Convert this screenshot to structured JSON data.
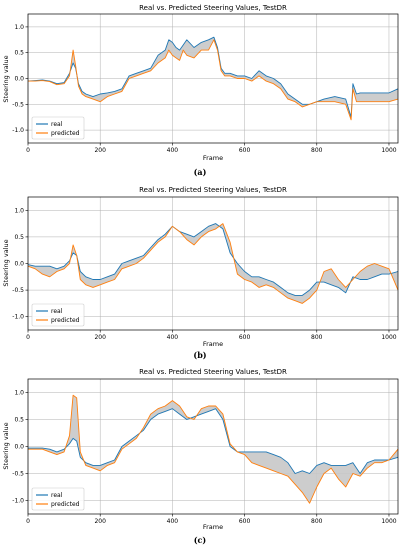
{
  "panel_labels": [
    "(a)",
    "(b)",
    "(c)"
  ],
  "colors": {
    "real": "#1f77b4",
    "predicted": "#ff7f0e",
    "fill": "#c8c8c8",
    "grid": "#b0b0b0"
  },
  "chart_data": [
    {
      "type": "line",
      "title": "Real vs. Predicted Steering Values, TestDR",
      "xlabel": "Frame",
      "ylabel": "Steering value",
      "xlim": [
        0,
        1025
      ],
      "ylim": [
        -1.25,
        1.25
      ],
      "xticks": [
        0,
        200,
        400,
        600,
        800,
        1000
      ],
      "yticks": [
        -1.0,
        -0.5,
        0.0,
        0.5,
        1.0
      ],
      "grid": true,
      "legend_position": "lower-left",
      "fill_between": true,
      "series": [
        {
          "name": "real",
          "x": [
            0,
            20,
            40,
            60,
            80,
            100,
            115,
            125,
            132,
            140,
            150,
            160,
            180,
            200,
            220,
            240,
            260,
            280,
            300,
            320,
            340,
            360,
            380,
            390,
            400,
            410,
            420,
            430,
            440,
            460,
            480,
            500,
            515,
            525,
            535,
            545,
            560,
            580,
            600,
            620,
            640,
            660,
            680,
            700,
            720,
            740,
            760,
            780,
            800,
            820,
            850,
            880,
            895,
            900,
            910,
            920,
            1000,
            1025
          ],
          "y": [
            -0.05,
            -0.04,
            -0.03,
            -0.05,
            -0.1,
            -0.08,
            0.1,
            0.3,
            0.2,
            -0.1,
            -0.25,
            -0.3,
            -0.35,
            -0.3,
            -0.28,
            -0.25,
            -0.2,
            0.05,
            0.1,
            0.15,
            0.2,
            0.45,
            0.55,
            0.75,
            0.7,
            0.6,
            0.55,
            0.65,
            0.75,
            0.6,
            0.7,
            0.75,
            0.8,
            0.6,
            0.2,
            0.1,
            0.1,
            0.05,
            0.05,
            0.0,
            0.15,
            0.05,
            0.0,
            -0.1,
            -0.3,
            -0.4,
            -0.5,
            -0.5,
            -0.45,
            -0.4,
            -0.35,
            -0.4,
            -0.75,
            -0.1,
            -0.3,
            -0.28,
            -0.28,
            -0.2
          ]
        },
        {
          "name": "predicted",
          "x": [
            0,
            20,
            40,
            60,
            80,
            100,
            115,
            125,
            132,
            140,
            150,
            160,
            180,
            200,
            220,
            240,
            260,
            280,
            300,
            320,
            340,
            360,
            380,
            390,
            400,
            410,
            420,
            430,
            440,
            460,
            480,
            500,
            515,
            525,
            535,
            545,
            560,
            580,
            600,
            620,
            640,
            660,
            680,
            700,
            720,
            740,
            760,
            780,
            800,
            820,
            850,
            880,
            895,
            900,
            910,
            920,
            1000,
            1025
          ],
          "y": [
            -0.05,
            -0.05,
            -0.04,
            -0.06,
            -0.12,
            -0.1,
            0.05,
            0.55,
            0.25,
            -0.15,
            -0.3,
            -0.35,
            -0.4,
            -0.45,
            -0.35,
            -0.3,
            -0.25,
            0.0,
            0.05,
            0.1,
            0.15,
            0.3,
            0.4,
            0.55,
            0.45,
            0.4,
            0.35,
            0.55,
            0.45,
            0.4,
            0.55,
            0.55,
            0.75,
            0.55,
            0.15,
            0.05,
            0.05,
            0.0,
            0.0,
            -0.05,
            0.05,
            -0.05,
            -0.1,
            -0.2,
            -0.4,
            -0.45,
            -0.55,
            -0.5,
            -0.45,
            -0.45,
            -0.45,
            -0.5,
            -0.8,
            -0.2,
            -0.45,
            -0.45,
            -0.45,
            -0.4
          ]
        }
      ]
    },
    {
      "type": "line",
      "title": "Real vs. Predicted Steering Values, TestDR",
      "xlabel": "Frame",
      "ylabel": "Steering value",
      "xlim": [
        0,
        1025
      ],
      "ylim": [
        -1.25,
        1.25
      ],
      "xticks": [
        0,
        200,
        400,
        600,
        800,
        1000
      ],
      "yticks": [
        -1.0,
        -0.5,
        0.0,
        0.5,
        1.0
      ],
      "grid": true,
      "legend_position": "lower-left",
      "fill_between": true,
      "series": [
        {
          "name": "real",
          "x": [
            0,
            20,
            40,
            60,
            80,
            100,
            115,
            125,
            135,
            145,
            160,
            180,
            200,
            220,
            240,
            260,
            280,
            300,
            320,
            340,
            360,
            380,
            400,
            420,
            440,
            460,
            480,
            500,
            520,
            540,
            560,
            580,
            600,
            620,
            640,
            660,
            680,
            700,
            720,
            740,
            760,
            780,
            800,
            820,
            840,
            860,
            880,
            900,
            920,
            940,
            960,
            980,
            1000,
            1025
          ],
          "y": [
            -0.02,
            -0.05,
            -0.05,
            -0.05,
            -0.1,
            -0.05,
            0.05,
            0.2,
            0.15,
            -0.15,
            -0.25,
            -0.3,
            -0.3,
            -0.25,
            -0.2,
            0.0,
            0.05,
            0.1,
            0.15,
            0.3,
            0.45,
            0.55,
            0.7,
            0.6,
            0.55,
            0.5,
            0.6,
            0.7,
            0.75,
            0.65,
            0.2,
            0.0,
            -0.15,
            -0.25,
            -0.25,
            -0.3,
            -0.35,
            -0.45,
            -0.55,
            -0.6,
            -0.6,
            -0.5,
            -0.35,
            -0.35,
            -0.4,
            -0.45,
            -0.55,
            -0.25,
            -0.3,
            -0.3,
            -0.25,
            -0.2,
            -0.2,
            -0.15
          ]
        },
        {
          "name": "predicted",
          "x": [
            0,
            20,
            40,
            60,
            80,
            100,
            115,
            125,
            135,
            145,
            160,
            180,
            200,
            220,
            240,
            260,
            280,
            300,
            320,
            340,
            360,
            380,
            400,
            420,
            440,
            460,
            480,
            500,
            520,
            540,
            560,
            580,
            600,
            620,
            640,
            660,
            680,
            700,
            720,
            740,
            760,
            780,
            800,
            820,
            840,
            860,
            880,
            900,
            920,
            940,
            960,
            980,
            1000,
            1025
          ],
          "y": [
            -0.05,
            -0.1,
            -0.2,
            -0.25,
            -0.15,
            -0.1,
            0.0,
            0.35,
            0.15,
            -0.3,
            -0.4,
            -0.45,
            -0.4,
            -0.35,
            -0.3,
            -0.1,
            -0.05,
            0.0,
            0.1,
            0.25,
            0.4,
            0.5,
            0.7,
            0.6,
            0.45,
            0.35,
            0.5,
            0.6,
            0.65,
            0.75,
            0.4,
            -0.2,
            -0.3,
            -0.35,
            -0.45,
            -0.4,
            -0.45,
            -0.55,
            -0.65,
            -0.7,
            -0.75,
            -0.65,
            -0.5,
            -0.15,
            -0.1,
            -0.3,
            -0.45,
            -0.3,
            -0.15,
            -0.05,
            0.0,
            -0.05,
            -0.1,
            -0.5
          ]
        }
      ]
    },
    {
      "type": "line",
      "title": "Real vs. Predicted Steering Values, TestDR",
      "xlabel": "Frame",
      "ylabel": "Steering value",
      "xlim": [
        0,
        1025
      ],
      "ylim": [
        -1.25,
        1.25
      ],
      "xticks": [
        0,
        200,
        400,
        600,
        800,
        1000
      ],
      "yticks": [
        -1.0,
        -0.5,
        0.0,
        0.5,
        1.0
      ],
      "grid": true,
      "legend_position": "lower-left",
      "fill_between": true,
      "series": [
        {
          "name": "real",
          "x": [
            0,
            20,
            40,
            60,
            80,
            100,
            115,
            125,
            135,
            145,
            160,
            180,
            200,
            220,
            240,
            260,
            280,
            300,
            320,
            340,
            360,
            380,
            400,
            420,
            440,
            460,
            480,
            500,
            520,
            540,
            560,
            580,
            600,
            620,
            640,
            660,
            680,
            700,
            720,
            740,
            760,
            780,
            800,
            820,
            840,
            860,
            880,
            900,
            920,
            940,
            960,
            980,
            1000,
            1025
          ],
          "y": [
            -0.03,
            -0.03,
            -0.03,
            -0.05,
            -0.1,
            -0.05,
            0.05,
            0.15,
            0.1,
            -0.2,
            -0.3,
            -0.35,
            -0.35,
            -0.3,
            -0.25,
            0.0,
            0.1,
            0.2,
            0.3,
            0.5,
            0.6,
            0.65,
            0.7,
            0.6,
            0.5,
            0.55,
            0.6,
            0.65,
            0.7,
            0.5,
            0.0,
            -0.1,
            -0.1,
            -0.1,
            -0.1,
            -0.1,
            -0.15,
            -0.2,
            -0.3,
            -0.5,
            -0.45,
            -0.5,
            -0.35,
            -0.3,
            -0.35,
            -0.35,
            -0.35,
            -0.3,
            -0.5,
            -0.3,
            -0.25,
            -0.25,
            -0.25,
            -0.2
          ]
        },
        {
          "name": "predicted",
          "x": [
            0,
            20,
            40,
            60,
            80,
            100,
            115,
            125,
            135,
            145,
            160,
            180,
            200,
            220,
            240,
            260,
            280,
            300,
            320,
            340,
            360,
            380,
            400,
            420,
            440,
            460,
            480,
            500,
            520,
            540,
            560,
            580,
            600,
            620,
            640,
            660,
            680,
            700,
            720,
            740,
            760,
            780,
            800,
            820,
            840,
            860,
            880,
            900,
            920,
            940,
            960,
            980,
            1000,
            1025
          ],
          "y": [
            -0.05,
            -0.05,
            -0.05,
            -0.1,
            -0.15,
            -0.1,
            0.2,
            0.95,
            0.9,
            -0.1,
            -0.35,
            -0.4,
            -0.45,
            -0.35,
            -0.3,
            -0.05,
            0.05,
            0.15,
            0.35,
            0.6,
            0.7,
            0.75,
            0.85,
            0.75,
            0.55,
            0.5,
            0.7,
            0.75,
            0.75,
            0.6,
            0.05,
            -0.1,
            -0.15,
            -0.3,
            -0.35,
            -0.4,
            -0.45,
            -0.5,
            -0.55,
            -0.7,
            -0.85,
            -1.05,
            -0.75,
            -0.5,
            -0.4,
            -0.6,
            -0.75,
            -0.5,
            -0.55,
            -0.4,
            -0.3,
            -0.3,
            -0.25,
            -0.05
          ]
        }
      ]
    }
  ]
}
